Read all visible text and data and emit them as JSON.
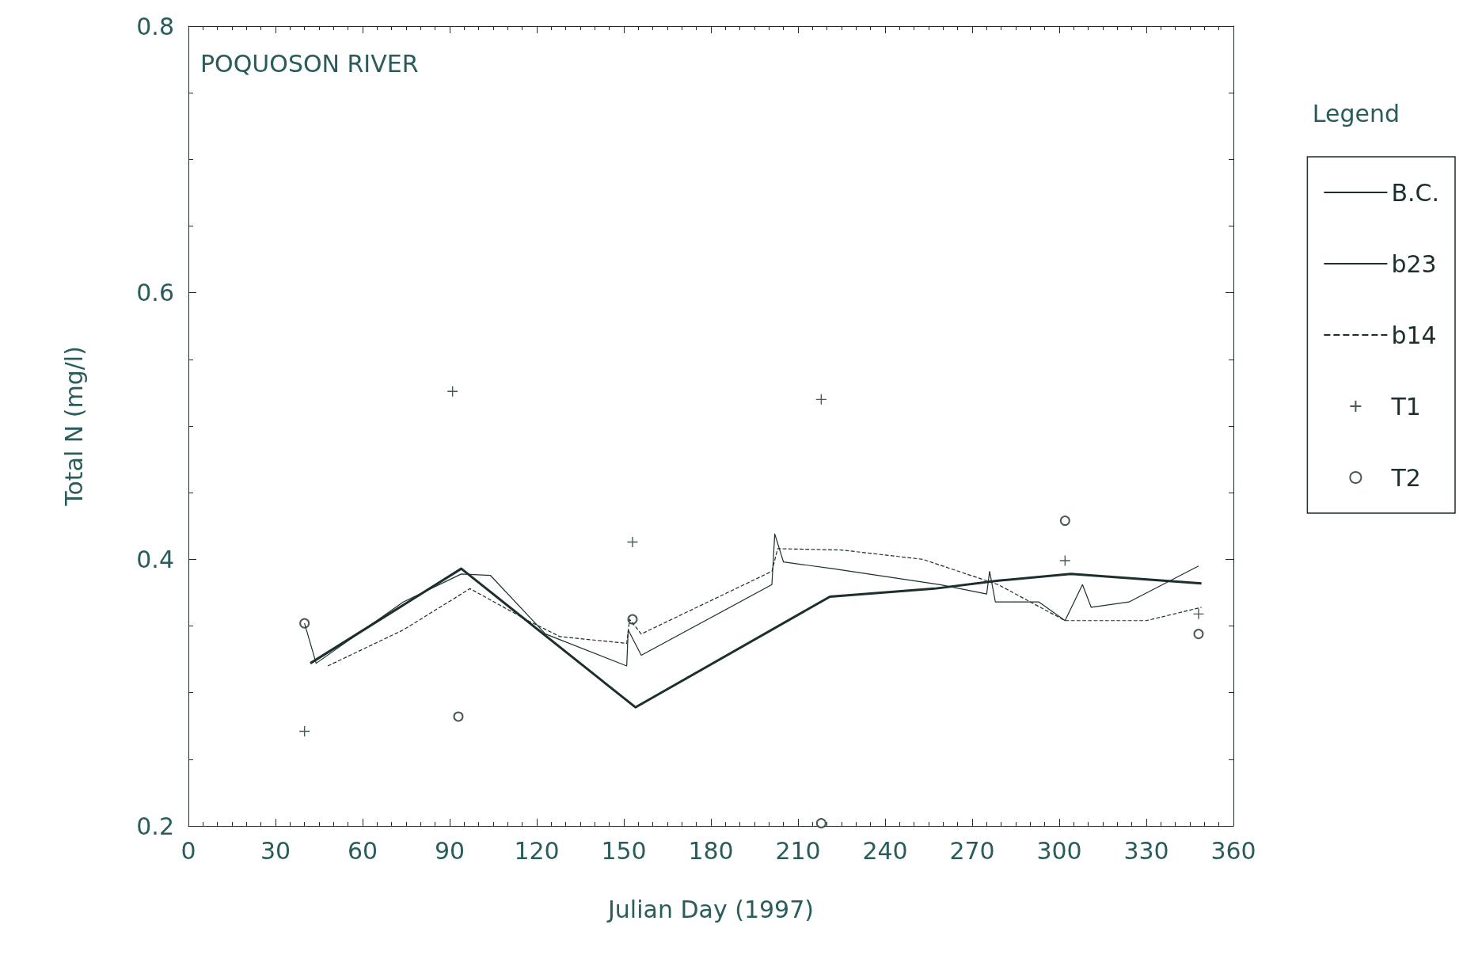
{
  "chart_data": {
    "type": "line",
    "title": "POQUOSON RIVER",
    "xlabel": "Julian Day (1997)",
    "ylabel": "Total N (mg/l)",
    "legend_title": "Legend",
    "legend": "right",
    "xlim": [
      0,
      360
    ],
    "xticks": [
      0,
      30,
      60,
      90,
      120,
      150,
      180,
      210,
      240,
      270,
      300,
      330,
      360
    ],
    "ylim": [
      0.2,
      0.8
    ],
    "yticks": [
      0.2,
      0.4,
      0.6,
      0.8
    ],
    "grid": false,
    "series": [
      {
        "name": "B.C.",
        "color": "#1c2e2e",
        "line_style": "solid",
        "marker": "none",
        "x": [
          42,
          94,
          154,
          221,
          257,
          279,
          304,
          349
        ],
        "values": [
          0.322,
          0.393,
          0.289,
          0.372,
          0.378,
          0.384,
          0.389,
          0.382
        ]
      },
      {
        "name": "b23",
        "color": "#1c2e2e",
        "line_style": "solid",
        "marker": "none",
        "x": [
          40,
          44,
          74,
          94,
          104,
          123,
          151,
          151.5,
          156,
          201,
          202,
          205,
          222,
          259,
          275,
          276,
          278,
          293,
          302,
          308,
          311,
          324,
          348
        ],
        "values": [
          0.352,
          0.322,
          0.368,
          0.389,
          0.388,
          0.344,
          0.32,
          0.347,
          0.328,
          0.381,
          0.419,
          0.398,
          0.393,
          0.381,
          0.374,
          0.391,
          0.368,
          0.368,
          0.354,
          0.381,
          0.364,
          0.368,
          0.395
        ]
      },
      {
        "name": "b14",
        "color": "#1c2e2e",
        "line_style": "dashed",
        "marker": "none",
        "x": [
          48,
          74,
          97,
          117,
          128,
          151,
          152,
          156,
          201,
          203,
          225,
          253,
          279,
          302,
          330,
          349
        ],
        "values": [
          0.32,
          0.347,
          0.378,
          0.354,
          0.342,
          0.337,
          0.355,
          0.344,
          0.391,
          0.408,
          0.407,
          0.4,
          0.381,
          0.354,
          0.354,
          0.364
        ]
      },
      {
        "name": "T1",
        "type": "scatter",
        "color": "#1c2e2e",
        "marker": "cross",
        "x": [
          40,
          91,
          153,
          218,
          302,
          348
        ],
        "values": [
          0.271,
          0.526,
          0.413,
          0.52,
          0.399,
          0.359
        ]
      },
      {
        "name": "T2",
        "type": "scatter",
        "color": "#1c2e2e",
        "marker": "circle",
        "x": [
          40,
          93,
          153,
          218,
          302,
          348
        ],
        "values": [
          0.352,
          0.282,
          0.355,
          0.202,
          0.429,
          0.344
        ]
      }
    ]
  }
}
